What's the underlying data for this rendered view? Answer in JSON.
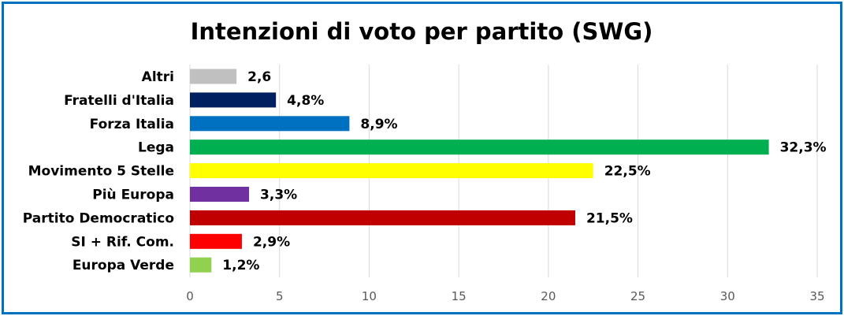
{
  "chart_data": {
    "type": "bar",
    "orientation": "horizontal",
    "title": "Intenzioni di voto per partito (SWG)",
    "xlabel": "",
    "ylabel": "",
    "xlim": [
      0,
      35
    ],
    "x_ticks": [
      "0",
      "5",
      "10",
      "15",
      "20",
      "25",
      "30",
      "35"
    ],
    "grid": "vertical",
    "legend": "none",
    "categories": [
      "Altri",
      "Fratelli d'Italia",
      "Forza Italia",
      "Lega",
      "Movimento 5 Stelle",
      "Più Europa",
      "Partito Democratico",
      "SI + Rif. Com.",
      "Europa Verde"
    ],
    "values": [
      2.6,
      4.8,
      8.9,
      32.3,
      22.5,
      3.3,
      21.5,
      2.9,
      1.2
    ],
    "data_labels": [
      "2,6",
      "4,8%",
      "8,9%",
      "32,3%",
      "22,5%",
      "3,3%",
      "21,5%",
      "2,9%",
      "1,2%"
    ],
    "colors": [
      "#c0c0c0",
      "#002060",
      "#0070c0",
      "#00b050",
      "#ffff00",
      "#7030a0",
      "#c00000",
      "#ff0000",
      "#92d050"
    ],
    "border_color": "#0070c0"
  }
}
